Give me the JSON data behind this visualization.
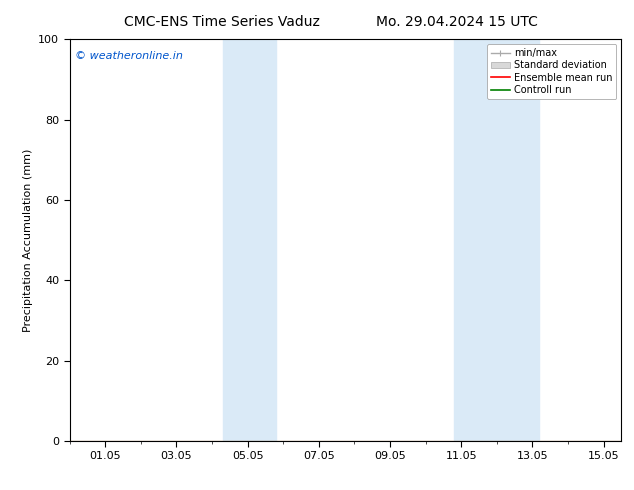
{
  "title_left": "CMC-ENS Time Series Vaduz",
  "title_right": "Mo. 29.04.2024 15 UTC",
  "ylabel": "Precipitation Accumulation (mm)",
  "ylim": [
    0,
    100
  ],
  "yticks": [
    0,
    20,
    40,
    60,
    80,
    100
  ],
  "xtick_labels": [
    "01.05",
    "03.05",
    "05.05",
    "07.05",
    "09.05",
    "11.05",
    "13.05",
    "15.05"
  ],
  "xtick_positions": [
    1,
    3,
    5,
    7,
    9,
    11,
    13,
    15
  ],
  "xlim": [
    0.0,
    15.5
  ],
  "shaded_bands": [
    {
      "x_start": 4.3,
      "x_end": 5.8
    },
    {
      "x_start": 10.8,
      "x_end": 13.2
    }
  ],
  "shaded_color": "#daeaf7",
  "watermark_text": "© weatheronline.in",
  "watermark_color": "#0055cc",
  "legend_labels": [
    "min/max",
    "Standard deviation",
    "Ensemble mean run",
    "Controll run"
  ],
  "legend_line_colors": [
    "#aaaaaa",
    "#cccccc",
    "#ff0000",
    "#008000"
  ],
  "bg_color": "#ffffff",
  "title_fontsize": 10,
  "axis_fontsize": 8,
  "tick_fontsize": 8
}
